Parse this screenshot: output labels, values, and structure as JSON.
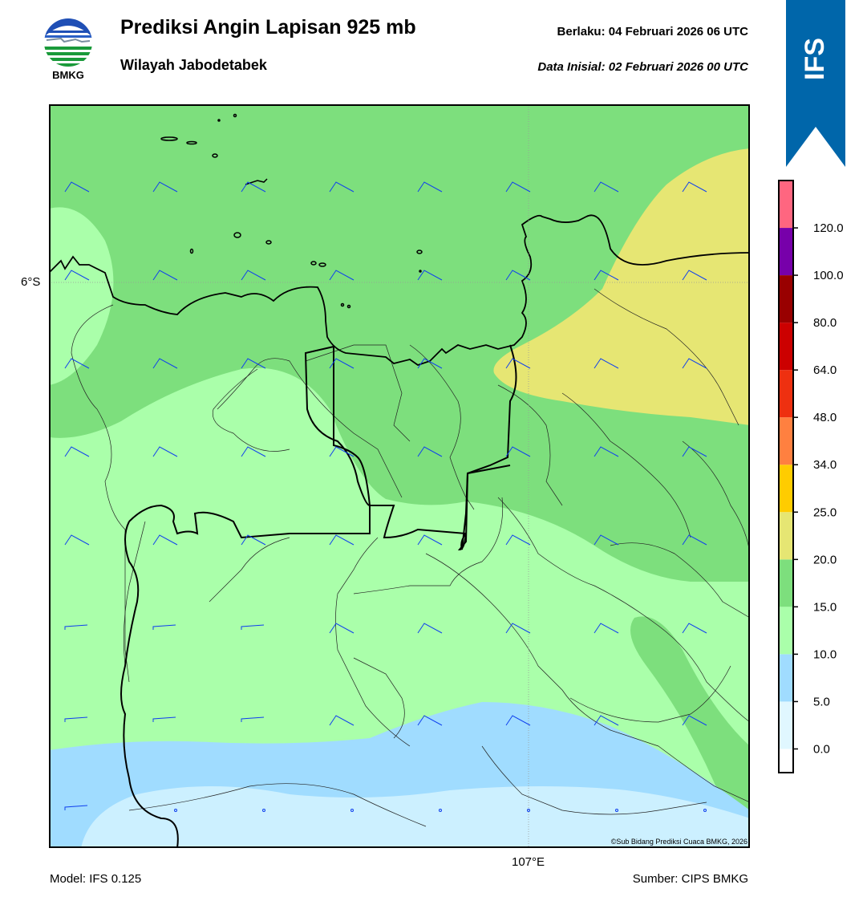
{
  "header": {
    "title": "Prediksi Angin Lapisan 925 mb",
    "subtitle": "Wilayah Jabodetabek",
    "valid_time": "Berlaku:  04 Februari 2026 06 UTC",
    "initial_time": "Data Inisial:  02 Februari 2026 00 UTC"
  },
  "logo": {
    "text": "BMKG"
  },
  "badge": {
    "text": "IFS",
    "color": "#0066aa"
  },
  "map": {
    "lat_label": "6°S",
    "lon_label": "107°E",
    "copyright": "©Sub Bidang Prediksi Cuaca BMKG, 2026"
  },
  "footer": {
    "model": "Model: IFS 0.125",
    "source": "Sumber: CIPS BMKG"
  },
  "colorbar": {
    "labels": [
      "0.0",
      "5.0",
      "10.0",
      "15.0",
      "20.0",
      "25.0",
      "34.0",
      "48.0",
      "64.0",
      "80.0",
      "100.0",
      "120.0"
    ],
    "colors": [
      "#ffffff",
      "#e0f7ff",
      "#a0dcff",
      "#aaffaa",
      "#7ddf7d",
      "#e6e673",
      "#ffcc00",
      "#ff8040",
      "#ee3010",
      "#cc0000",
      "#990000",
      "#7700aa",
      "#ff6680"
    ]
  }
}
